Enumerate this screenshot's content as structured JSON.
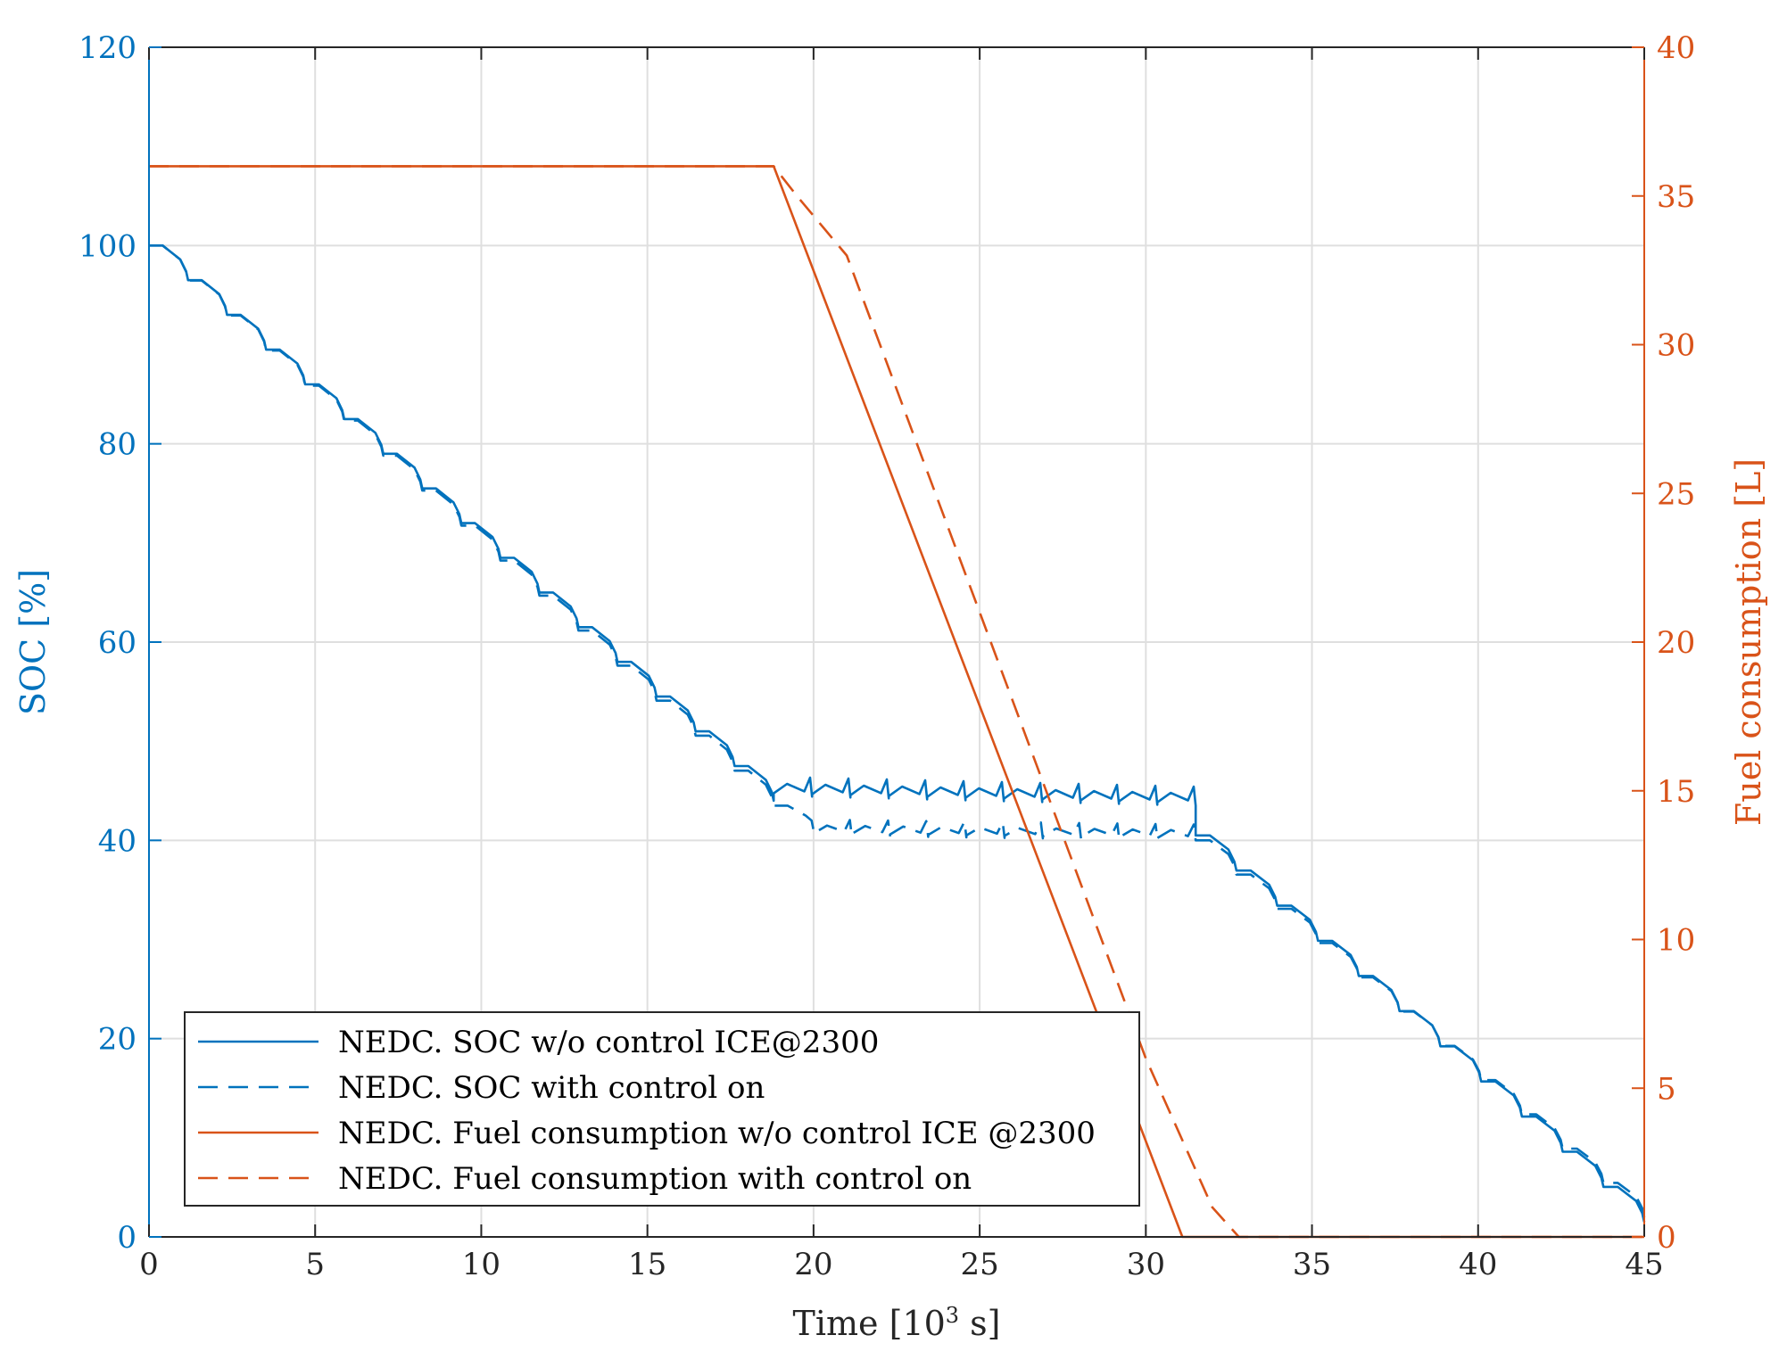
{
  "chart_data": {
    "type": "line",
    "xlabel": "Time [10",
    "xlabel_exp": "3",
    "xlabel_suffix": " s]",
    "ylabel_left": "SOC [%]",
    "ylabel_right": "Fuel consumption [L]",
    "xlim": [
      0,
      45
    ],
    "ylim_left": [
      0,
      120
    ],
    "ylim_right": [
      0,
      40
    ],
    "xticks": [
      0,
      5,
      10,
      15,
      20,
      25,
      30,
      35,
      40,
      45
    ],
    "yticks_left": [
      0,
      20,
      40,
      60,
      80,
      100,
      120
    ],
    "yticks_right": [
      0,
      5,
      10,
      15,
      20,
      25,
      30,
      35,
      40
    ],
    "grid": true,
    "legend_position": "bottom-left",
    "colors": {
      "soc": "#0072BD",
      "fuel": "#D95319"
    },
    "series": [
      {
        "name": "NEDC. SOC w/o control ICE@2300",
        "axis": "left",
        "style": "solid",
        "color": "#0072BD",
        "sawtooth": {
          "period": 1.18,
          "segments": [
            {
              "x0": 0,
              "x1": 18.8,
              "y0": 100,
              "y1": 44,
              "drop": 0.9
            },
            {
              "x0": 18.8,
              "x1": 31.5,
              "y0": 44.5,
              "y1": 43.5,
              "drop": 1.8,
              "amp": 1.2
            },
            {
              "x0": 31.5,
              "x1": 45,
              "y0": 40.5,
              "y1": 1.5,
              "drop": 0.9
            }
          ]
        }
      },
      {
        "name": "NEDC. SOC with control on",
        "axis": "left",
        "style": "dashed",
        "color": "#0072BD",
        "sawtooth": {
          "period": 1.18,
          "segments": [
            {
              "x0": 0,
              "x1": 18.8,
              "y0": 100,
              "y1": 43.5,
              "drop": 0.9
            },
            {
              "x0": 18.8,
              "x1": 20,
              "y0": 43.5,
              "y1": 41,
              "drop": 1.0
            },
            {
              "x0": 20,
              "x1": 31.5,
              "y0": 40.5,
              "y1": 40.0,
              "drop": 1.5,
              "amp": 1.0
            },
            {
              "x0": 31.5,
              "x1": 45,
              "y0": 40.0,
              "y1": 2.0,
              "drop": 0.9
            }
          ]
        }
      },
      {
        "name": "NEDC. Fuel consumption w/o control ICE @2300",
        "axis": "right",
        "style": "solid",
        "color": "#D95319",
        "x": [
          0,
          18.8,
          31.1,
          45
        ],
        "y": [
          36,
          36,
          0,
          0
        ]
      },
      {
        "name": "NEDC. Fuel consumption with control on",
        "axis": "right",
        "style": "dashed",
        "color": "#D95319",
        "x": [
          0,
          18.8,
          19.5,
          21,
          22,
          23,
          24,
          25,
          26,
          27,
          28,
          29,
          30,
          31,
          32,
          32.8,
          45
        ],
        "y": [
          36,
          36,
          35,
          33,
          30,
          27,
          24,
          21,
          18,
          15,
          12,
          9,
          6,
          3.5,
          1,
          0,
          0
        ]
      }
    ]
  }
}
